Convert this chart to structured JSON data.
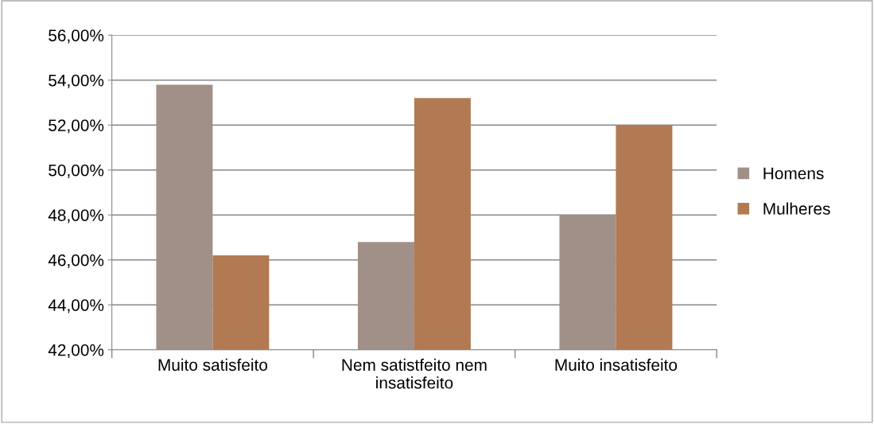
{
  "chart_data": {
    "type": "bar",
    "categories": [
      "Muito satisfeito",
      "Nem satistfeito nem\ninsatisfeito",
      "Muito insatisfeito"
    ],
    "series": [
      {
        "name": "Homens",
        "color": "#a09087",
        "values": [
          53.8,
          46.8,
          48.0
        ]
      },
      {
        "name": "Mulheres",
        "color": "#b27a52",
        "values": [
          46.2,
          53.2,
          52.0
        ]
      }
    ],
    "ylim": [
      42,
      56
    ],
    "yticks": [
      {
        "value": 42,
        "label": "42,00%"
      },
      {
        "value": 44,
        "label": "44,00%"
      },
      {
        "value": 46,
        "label": "46,00%"
      },
      {
        "value": 48,
        "label": "48,00%"
      },
      {
        "value": 50,
        "label": "50,00%"
      },
      {
        "value": 52,
        "label": "52,00%"
      },
      {
        "value": 54,
        "label": "54,00%"
      },
      {
        "value": 56,
        "label": "56,00%"
      }
    ],
    "grid": "y",
    "legend": "right"
  }
}
